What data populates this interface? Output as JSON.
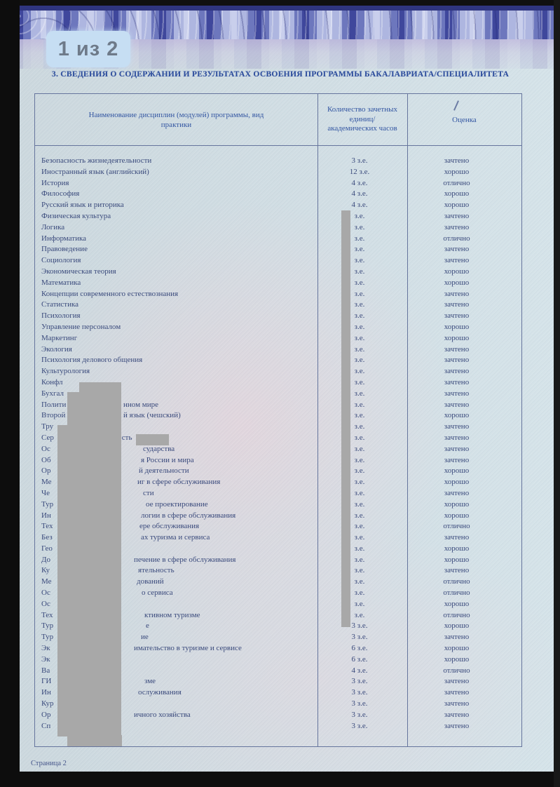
{
  "page": {
    "indicator": "1 из 2",
    "footer": "Страница 2"
  },
  "heading": "3. СВЕДЕНИЯ О СОДЕРЖАНИИ И РЕЗУЛЬТАТАХ ОСВОЕНИЯ ПРОГРАММЫ БАКАЛАВРИАТА/СПЕЦИАЛИТЕТА",
  "colors": {
    "accent": "#2f4f9e",
    "ink": "#3a4a7c",
    "redaction_gray": "#a8a8a8",
    "badge_bg": "#c6def3",
    "band_blue": "#3f479c"
  },
  "table": {
    "headers": {
      "name": "Наименование дисциплин (модулей) программы, вид практики",
      "credits": "Количество зачетных единиц/ академических часов",
      "grade": "Оценка"
    },
    "rows": [
      {
        "name": "Безопасность жизнедеятельности",
        "credits": "3 з.е.",
        "grade": "зачтено"
      },
      {
        "name": "Иностранный язык (английский)",
        "credits": "12 з.е.",
        "grade": "хорошо"
      },
      {
        "name": "История",
        "credits": "4 з.е.",
        "grade": "отлично"
      },
      {
        "name": "Философия",
        "credits": "4 з.е.",
        "grade": "хорошо"
      },
      {
        "name": "Русский язык и риторика",
        "credits": "4 з.е.",
        "grade": "хорошо"
      },
      {
        "name": "Физическая культура",
        "credits": "з.е.",
        "grade": "зачтено"
      },
      {
        "name": "Логика",
        "credits": "з.е.",
        "grade": "зачтено"
      },
      {
        "name": "Информатика",
        "credits": "з.е.",
        "grade": "отлично"
      },
      {
        "name": "Правоведение",
        "credits": "з.е.",
        "grade": "зачтено"
      },
      {
        "name": "Социология",
        "credits": "з.е.",
        "grade": "зачтено"
      },
      {
        "name": "Экономическая теория",
        "credits": "з.е.",
        "grade": "хорошо"
      },
      {
        "name": "Математика",
        "credits": "з.е.",
        "grade": "хорошо"
      },
      {
        "name": "Концепции современного естествознания",
        "credits": "з.е.",
        "grade": "зачтено"
      },
      {
        "name": "Статистика",
        "credits": "з.е.",
        "grade": "зачтено"
      },
      {
        "name": "Психология",
        "credits": "з.е.",
        "grade": "зачтено"
      },
      {
        "name": "Управление персоналом",
        "credits": "з.е.",
        "grade": "хорошо"
      },
      {
        "name": "Маркетинг",
        "credits": "з.е.",
        "grade": "хорошо"
      },
      {
        "name": "Экология",
        "credits": "з.е.",
        "grade": "зачтено"
      },
      {
        "name": "Психология делового общения",
        "credits": "з.е.",
        "grade": "зачтено"
      },
      {
        "name": "Культурология",
        "credits": "з.е.",
        "grade": "зачтено"
      },
      {
        "redacted": true,
        "prefix": "Конфл",
        "suffix": "",
        "sx": 0,
        "credits": "з.е.",
        "grade": "зачтено"
      },
      {
        "redacted": true,
        "prefix": "Бухгал",
        "suffix": "",
        "sx": 0,
        "credits": "з.е.",
        "grade": "зачтено"
      },
      {
        "redacted": true,
        "prefix": "Полити",
        "suffix": "нном мире",
        "sx": 126,
        "credits": "з.е.",
        "grade": "зачтено"
      },
      {
        "redacted": true,
        "prefix": "Второй",
        "suffix": "й язык (чешский)",
        "sx": 126,
        "credits": "з.е.",
        "grade": "хорошо"
      },
      {
        "redacted": true,
        "prefix": "Тру",
        "suffix": "",
        "sx": 0,
        "credits": "з.е.",
        "grade": "зачтено"
      },
      {
        "redacted": true,
        "prefix": "Сер",
        "suffix": "ость",
        "sx": 118,
        "credits": "з.е.",
        "grade": "зачтено"
      },
      {
        "redacted": true,
        "prefix": "Ос",
        "suffix": "сударства",
        "sx": 154,
        "credits": "з.е.",
        "grade": "зачтено"
      },
      {
        "redacted": true,
        "prefix": "Об",
        "suffix": "я России и мира",
        "sx": 151,
        "credits": "з.е.",
        "grade": "зачтено"
      },
      {
        "redacted": true,
        "prefix": "Ор",
        "suffix": "й деятельности",
        "sx": 148,
        "credits": "з.е.",
        "grade": "хорошо"
      },
      {
        "redacted": true,
        "prefix": "Ме",
        "suffix": "иг в сфере обслуживания",
        "sx": 146,
        "credits": "з.е.",
        "grade": "хорошо"
      },
      {
        "redacted": true,
        "prefix": "Че",
        "suffix": "сти",
        "sx": 154,
        "credits": "з.е.",
        "grade": "зачтено"
      },
      {
        "redacted": true,
        "prefix": "Тур",
        "suffix": "ое проектирование",
        "sx": 158,
        "credits": "з.е.",
        "grade": "хорошо"
      },
      {
        "redacted": true,
        "prefix": "Ин",
        "suffix": "логии в сфере обслуживания",
        "sx": 151,
        "credits": "з.е.",
        "grade": "хорошо"
      },
      {
        "redacted": true,
        "prefix": "Тех",
        "suffix": "ере обслуживания",
        "sx": 149,
        "credits": "з.е.",
        "grade": "отлично"
      },
      {
        "redacted": true,
        "prefix": "Без",
        "suffix": "ах туризма и сервиса",
        "sx": 151,
        "credits": "з.е.",
        "grade": "зачтено"
      },
      {
        "redacted": true,
        "prefix": "Гео",
        "suffix": "",
        "sx": 0,
        "credits": "з.е.",
        "grade": "хорошо"
      },
      {
        "redacted": true,
        "prefix": "До",
        "suffix": "печение в сфере обслуживания",
        "sx": 141,
        "credits": "з.е.",
        "grade": "хорошо"
      },
      {
        "redacted": true,
        "prefix": "Ку",
        "suffix": "ятельность",
        "sx": 147,
        "credits": "з.е.",
        "grade": "зачтено"
      },
      {
        "redacted": true,
        "prefix": "Ме",
        "suffix": "дований",
        "sx": 145,
        "credits": "з.е.",
        "grade": "отлично"
      },
      {
        "redacted": true,
        "prefix": "Ос",
        "suffix": "о сервиса",
        "sx": 152,
        "credits": "з.е.",
        "grade": "отлично"
      },
      {
        "redacted": true,
        "prefix": "Ос",
        "suffix": "",
        "sx": 0,
        "credits": "з.е.",
        "grade": "хорошо"
      },
      {
        "redacted": true,
        "prefix": "Тех",
        "suffix": "ктивном туризме",
        "sx": 156,
        "credits": "з.е.",
        "grade": "отлично"
      },
      {
        "redacted": true,
        "prefix": "Тур",
        "suffix": "е",
        "sx": 158,
        "credits": "3 з.е.",
        "grade": "хорошо"
      },
      {
        "redacted": true,
        "prefix": "Тур",
        "suffix": "ие",
        "sx": 151,
        "credits": "3 з.е.",
        "grade": "зачтено"
      },
      {
        "redacted": true,
        "prefix": "Эк",
        "suffix": "имательство в туризме и сервисе",
        "sx": 141,
        "credits": "6 з.е.",
        "grade": "хорошо"
      },
      {
        "redacted": true,
        "prefix": "Эк",
        "suffix": "",
        "sx": 0,
        "credits": "6 з.е.",
        "grade": "хорошо"
      },
      {
        "redacted": true,
        "prefix": "Ва",
        "suffix": "",
        "sx": 0,
        "credits": "4 з.е.",
        "grade": "отлично"
      },
      {
        "redacted": true,
        "prefix": "ГИ",
        "suffix": "зме",
        "sx": 156,
        "credits": "3 з.е.",
        "grade": "зачтено"
      },
      {
        "redacted": true,
        "prefix": "Ин",
        "suffix": "ослуживания",
        "sx": 147,
        "credits": "3 з.е.",
        "grade": "зачтено"
      },
      {
        "redacted": true,
        "prefix": "Кур",
        "suffix": "",
        "sx": 0,
        "credits": "3 з.е.",
        "grade": "зачтено"
      },
      {
        "redacted": true,
        "prefix": "Ор",
        "suffix": "ичного хозяйства",
        "sx": 141,
        "credits": "3 з.е.",
        "grade": "зачтено"
      },
      {
        "redacted": true,
        "prefix": "Сп",
        "suffix": "",
        "sx": 0,
        "credits": "3 з.е.",
        "grade": "зачтено"
      }
    ]
  }
}
